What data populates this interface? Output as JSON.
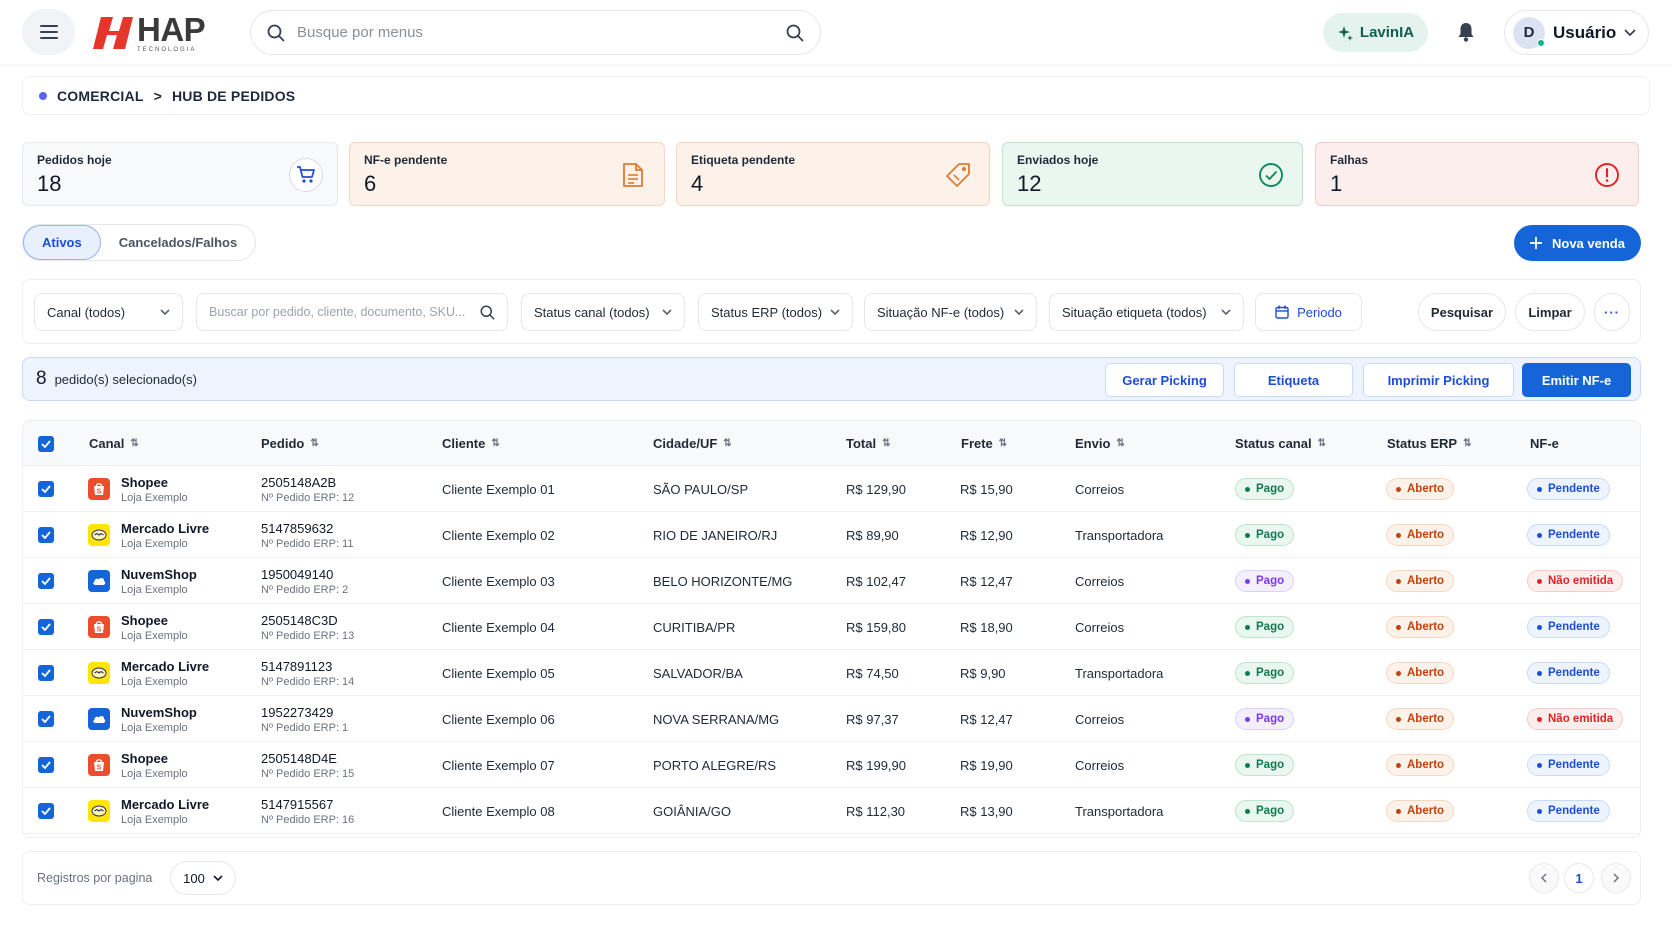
{
  "header": {
    "logo_name": "HAP",
    "logo_sub": "TECNOLOGIA",
    "search_placeholder": "Busque por menus",
    "assistant_label": "LavinIA",
    "user_initial": "D",
    "user_name": "Usuário"
  },
  "breadcrumb": {
    "section": "COMERCIAL",
    "separator": ">",
    "page": "HUB DE PEDIDOS"
  },
  "stats": [
    {
      "label": "Pedidos hoje",
      "value": "18"
    },
    {
      "label": "NF-e pendente",
      "value": "6"
    },
    {
      "label": "Etiqueta pendente",
      "value": "4"
    },
    {
      "label": "Enviados hoje",
      "value": "12"
    },
    {
      "label": "Falhas",
      "value": "1"
    }
  ],
  "tabs": [
    {
      "label": "Ativos",
      "active": true
    },
    {
      "label": "Cancelados/Falhos",
      "active": false
    }
  ],
  "new_sale_label": "Nova venda",
  "filters": {
    "canal": "Canal (todos)",
    "search_placeholder": "Buscar por pedido, cliente, documento, SKU...",
    "status_canal": "Status canal (todos)",
    "status_erp": "Status ERP (todos)",
    "situacao_nfe": "Situação NF-e (todos)",
    "situacao_etiqueta": "Situação etiqueta (todos)",
    "periodo": "Periodo",
    "pesquisar": "Pesquisar",
    "limpar": "Limpar",
    "more": "···"
  },
  "selection": {
    "count": "8",
    "text": "pedido(s) selecionado(s)",
    "actions": [
      "Gerar Picking",
      "Etiqueta",
      "Imprimir Picking",
      "Emitir NF-e"
    ]
  },
  "table": {
    "columns": [
      "Canal",
      "Pedido",
      "Cliente",
      "Cidade/UF",
      "Total",
      "Frete",
      "Envio",
      "Status canal",
      "Status ERP",
      "NF-e"
    ],
    "rows": [
      {
        "canal": "Shopee",
        "loja": "Loja Exemplo",
        "pedido": "2505148A2B",
        "erp": "Nº Pedido ERP: 12",
        "cliente": "Cliente Exemplo 01",
        "cidade": "SÃO PAULO/SP",
        "total": "R$ 129,90",
        "frete": "R$ 15,90",
        "envio": "Correios",
        "status_canal": "Pago",
        "status_erp": "Aberto",
        "nfe": "Pendente"
      },
      {
        "canal": "Mercado Livre",
        "loja": "Loja Exemplo",
        "pedido": "5147859632",
        "erp": "Nº Pedido ERP: 11",
        "cliente": "Cliente Exemplo 02",
        "cidade": "RIO DE JANEIRO/RJ",
        "total": "R$ 89,90",
        "frete": "R$ 12,90",
        "envio": "Transportadora",
        "status_canal": "Pago",
        "status_erp": "Aberto",
        "nfe": "Pendente"
      },
      {
        "canal": "NuvemShop",
        "loja": "Loja Exemplo",
        "pedido": "1950049140",
        "erp": "Nº Pedido ERP: 2",
        "cliente": "Cliente Exemplo 03",
        "cidade": "BELO HORIZONTE/MG",
        "total": "R$ 102,47",
        "frete": "R$ 12,47",
        "envio": "Correios",
        "status_canal": "Pago",
        "status_erp": "Aberto",
        "nfe": "Não emitida"
      },
      {
        "canal": "Shopee",
        "loja": "Loja Exemplo",
        "pedido": "2505148C3D",
        "erp": "Nº Pedido ERP: 13",
        "cliente": "Cliente Exemplo 04",
        "cidade": "CURITIBA/PR",
        "total": "R$ 159,80",
        "frete": "R$ 18,90",
        "envio": "Correios",
        "status_canal": "Pago",
        "status_erp": "Aberto",
        "nfe": "Pendente"
      },
      {
        "canal": "Mercado Livre",
        "loja": "Loja Exemplo",
        "pedido": "5147891123",
        "erp": "Nº Pedido ERP: 14",
        "cliente": "Cliente Exemplo 05",
        "cidade": "SALVADOR/BA",
        "total": "R$ 74,50",
        "frete": "R$ 9,90",
        "envio": "Transportadora",
        "status_canal": "Pago",
        "status_erp": "Aberto",
        "nfe": "Pendente"
      },
      {
        "canal": "NuvemShop",
        "loja": "Loja Exemplo",
        "pedido": "1952273429",
        "erp": "Nº Pedido ERP: 1",
        "cliente": "Cliente Exemplo 06",
        "cidade": "NOVA SERRANA/MG",
        "total": "R$ 97,37",
        "frete": "R$ 12,47",
        "envio": "Correios",
        "status_canal": "Pago",
        "status_erp": "Aberto",
        "nfe": "Não emitida"
      },
      {
        "canal": "Shopee",
        "loja": "Loja Exemplo",
        "pedido": "2505148D4E",
        "erp": "Nº Pedido ERP: 15",
        "cliente": "Cliente Exemplo 07",
        "cidade": "PORTO ALEGRE/RS",
        "total": "R$ 199,90",
        "frete": "R$ 19,90",
        "envio": "Correios",
        "status_canal": "Pago",
        "status_erp": "Aberto",
        "nfe": "Pendente"
      },
      {
        "canal": "Mercado Livre",
        "loja": "Loja Exemplo",
        "pedido": "5147915567",
        "erp": "Nº Pedido ERP: 16",
        "cliente": "Cliente Exemplo 08",
        "cidade": "GOIÂNIA/GO",
        "total": "R$ 112,30",
        "frete": "R$ 13,90",
        "envio": "Transportadora",
        "status_canal": "Pago",
        "status_erp": "Aberto",
        "nfe": "Pendente"
      }
    ]
  },
  "footer": {
    "per_page_label": "Registros por pagina",
    "per_page_value": "100",
    "current_page": "1"
  },
  "colors": {
    "primary": "#1565d8",
    "shopee": "#ee4d2d",
    "mercado_livre": "#ffe600",
    "nuvemshop": "#1565d8",
    "pago_green": "#0f7a4f",
    "pago_purple": "#7c3aed",
    "aberto_orange": "#c2410c",
    "pendente_blue": "#1d4ed8",
    "nao_emitida_red": "#dc2626"
  }
}
